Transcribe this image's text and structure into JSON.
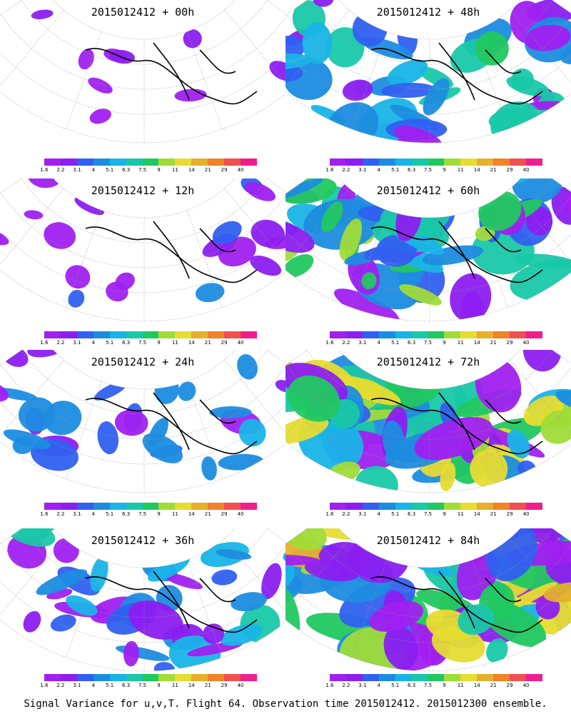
{
  "chart_data": {
    "type": "heatmap",
    "projection": "polar sector map (Northern Pacific / North America)",
    "colorbar": {
      "labels": [
        "1.6",
        "2.2",
        "3.1",
        "4",
        "5.1",
        "6.3",
        "7.5",
        "9",
        "11",
        "14",
        "21",
        "29",
        "40"
      ],
      "colors": [
        "#a020f0",
        "#8c1ef0",
        "#3060f0",
        "#1c8ce0",
        "#18b4e8",
        "#18c8a8",
        "#20c860",
        "#a0dc38",
        "#e6dc32",
        "#e6af2d",
        "#f08228",
        "#f05050",
        "#f01e8c"
      ]
    },
    "panels": [
      {
        "title": "2015012412 + 00h",
        "intensity": 0
      },
      {
        "title": "2015012412 + 48h",
        "intensity": 4
      },
      {
        "title": "2015012412 + 12h",
        "intensity": 1
      },
      {
        "title": "2015012412 + 60h",
        "intensity": 5
      },
      {
        "title": "2015012412 + 24h",
        "intensity": 2
      },
      {
        "title": "2015012412 + 72h",
        "intensity": 6
      },
      {
        "title": "2015012412 + 36h",
        "intensity": 3
      },
      {
        "title": "2015012412 + 84h",
        "intensity": 7
      }
    ],
    "footer": "Signal Variance for u,v,T. Flight 64. Observation time 2015012412. 2015012300 ensemble."
  }
}
